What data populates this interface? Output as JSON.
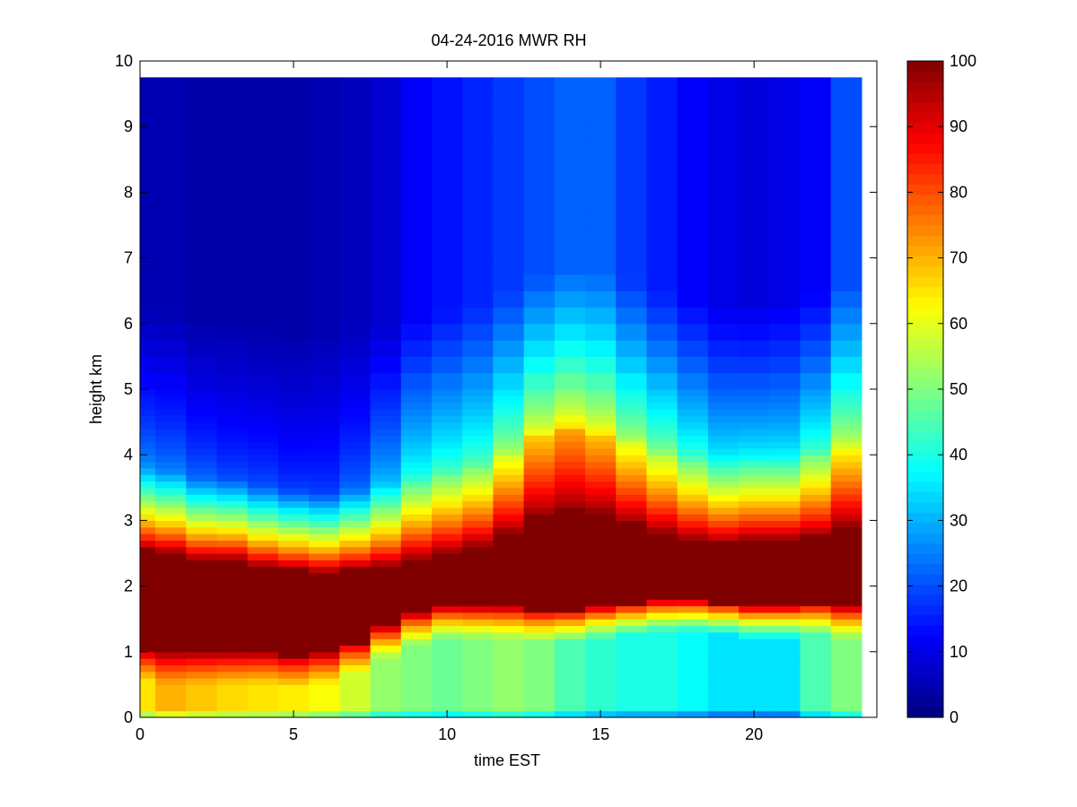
{
  "chart_data": {
    "type": "heatmap",
    "title": "04-24-2016 MWR RH",
    "xlabel": "time EST",
    "ylabel": "height km",
    "xlim": [
      0,
      24
    ],
    "ylim": [
      0,
      10
    ],
    "xticks": [
      0,
      5,
      10,
      15,
      20
    ],
    "yticks": [
      0,
      1,
      2,
      3,
      4,
      5,
      6,
      7,
      8,
      9,
      10
    ],
    "colorbar": {
      "colormap": "jet",
      "range": [
        0,
        100
      ],
      "ticks": [
        0,
        10,
        20,
        30,
        40,
        50,
        60,
        70,
        80,
        90,
        100
      ]
    },
    "grid": false,
    "x_edges": [
      0,
      0.5,
      1.5,
      2.5,
      3.5,
      4.5,
      5.5,
      6.5,
      7.5,
      8.5,
      9.5,
      10.5,
      11.5,
      12.5,
      13.5,
      14.5,
      15.5,
      16.5,
      17.5,
      18.5,
      19.5,
      20.5,
      21.5,
      22.5,
      23.5
    ],
    "y_edges": [
      0,
      0.1,
      0.2,
      0.3,
      0.4,
      0.5,
      0.6,
      0.7,
      0.8,
      0.9,
      1.0,
      1.1,
      1.2,
      1.3,
      1.4,
      1.5,
      1.6,
      1.7,
      1.8,
      1.9,
      2.0,
      2.1,
      2.2,
      2.3,
      2.4,
      2.5,
      2.6,
      2.7,
      2.8,
      2.9,
      3.0,
      3.1,
      3.2,
      3.3,
      3.4,
      3.5,
      3.6,
      3.7,
      3.8,
      3.9,
      4.0,
      4.1,
      4.2,
      4.3,
      4.4,
      4.5,
      4.6,
      4.7,
      4.8,
      4.9,
      5.0,
      5.25,
      5.5,
      5.75,
      6.0,
      6.25,
      6.5,
      6.75,
      7.0,
      7.25,
      7.5,
      7.75,
      8.0,
      8.25,
      8.5,
      8.75,
      9.0,
      9.25,
      9.5,
      9.75
    ],
    "humidity_profile": {
      "band_center_km": [
        1.8,
        1.75,
        1.7,
        1.7,
        1.65,
        1.6,
        1.6,
        1.7,
        1.85,
        2.0,
        2.1,
        2.15,
        2.25,
        2.35,
        2.4,
        2.4,
        2.35,
        2.3,
        2.25,
        2.2,
        2.2,
        2.2,
        2.25,
        2.3
      ],
      "band_half_width_km": [
        0.75,
        0.75,
        0.7,
        0.7,
        0.65,
        0.65,
        0.6,
        0.55,
        0.45,
        0.4,
        0.4,
        0.45,
        0.55,
        0.7,
        0.75,
        0.7,
        0.6,
        0.5,
        0.45,
        0.45,
        0.5,
        0.5,
        0.5,
        0.6
      ],
      "surface_layer_rh": [
        65,
        70,
        68,
        66,
        65,
        64,
        62,
        58,
        52,
        50,
        48,
        50,
        52,
        50,
        45,
        42,
        40,
        40,
        38,
        35,
        35,
        35,
        45,
        50
      ],
      "mid_level_rh": [
        30,
        28,
        25,
        22,
        22,
        20,
        20,
        25,
        35,
        45,
        48,
        50,
        58,
        68,
        72,
        68,
        60,
        55,
        48,
        42,
        42,
        42,
        50,
        62
      ],
      "upper_level_rh": [
        5,
        5,
        4,
        4,
        4,
        4,
        5,
        6,
        8,
        12,
        14,
        16,
        18,
        20,
        22,
        22,
        18,
        15,
        12,
        10,
        9,
        10,
        12,
        20
      ]
    }
  }
}
